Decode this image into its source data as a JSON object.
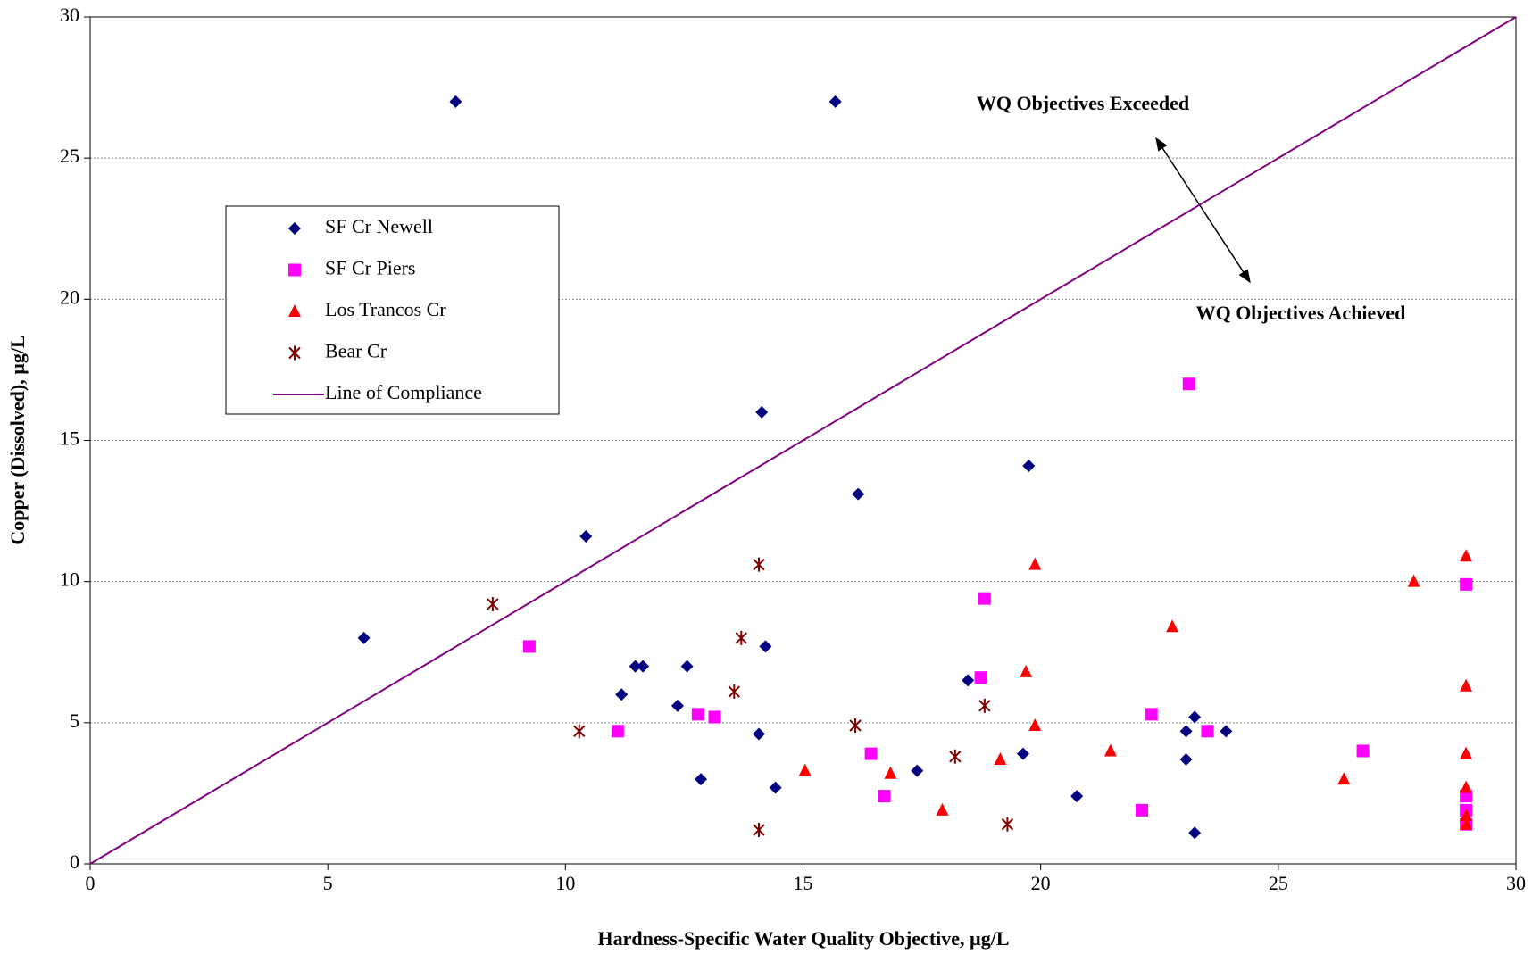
{
  "chart_data": {
    "type": "scatter",
    "x_label": "Hardness-Specific Water Quality Objective, µg/L",
    "y_label": "Copper (Dissolved), µg/L",
    "annotations": [
      "WQ Objectives Exceeded",
      "WQ Objectives Achieved"
    ],
    "xlim": [
      0,
      30
    ],
    "ylim": [
      0,
      30
    ],
    "xticks": [
      0,
      5,
      10,
      15,
      20,
      25,
      30
    ],
    "yticks": [
      0,
      5,
      10,
      15,
      20,
      25,
      30
    ],
    "grid": true,
    "legend": "upper left",
    "series": [
      {
        "name": "SF Cr Newell",
        "color": "#000080",
        "marker": "diamond",
        "x": [
          7.69,
          15.68,
          5.76,
          10.43,
          14.13,
          16.16,
          19.75,
          11.18,
          11.47,
          11.63,
          12.56,
          12.36,
          12.85,
          14.07,
          14.21,
          14.42,
          17.4,
          18.47,
          19.63,
          20.76,
          23.06,
          23.06,
          23.24,
          23.9,
          23.24
        ],
        "values": [
          27.0,
          27.0,
          8.0,
          11.6,
          16.0,
          13.1,
          14.1,
          6.0,
          7.0,
          7.0,
          7.0,
          5.6,
          3.0,
          4.6,
          7.7,
          2.7,
          3.3,
          6.5,
          3.9,
          2.4,
          4.7,
          3.7,
          5.2,
          4.7,
          1.1
        ]
      },
      {
        "name": "SF Cr Piers",
        "color": "#ff00ff",
        "marker": "square",
        "x": [
          9.24,
          11.1,
          12.79,
          13.14,
          16.43,
          16.71,
          18.74,
          18.82,
          22.13,
          22.33,
          23.12,
          23.51,
          26.78,
          28.95,
          28.95,
          28.95,
          28.95
        ],
        "values": [
          7.7,
          4.7,
          5.3,
          5.2,
          3.9,
          2.4,
          6.6,
          9.4,
          1.9,
          5.3,
          17.0,
          4.7,
          4.0,
          9.9,
          2.4,
          1.9,
          1.4
        ]
      },
      {
        "name": "Los Trancos Cr",
        "color": "#ff0000",
        "marker": "triangle",
        "x": [
          15.04,
          16.84,
          17.93,
          19.15,
          19.69,
          19.88,
          19.88,
          21.47,
          22.77,
          26.38,
          27.85,
          28.95,
          28.95,
          28.95,
          28.95,
          28.95,
          28.95
        ],
        "values": [
          3.3,
          3.2,
          1.9,
          3.7,
          6.8,
          10.6,
          4.9,
          4.0,
          8.4,
          3.0,
          10.0,
          10.9,
          6.3,
          3.9,
          2.7,
          1.7,
          1.4
        ]
      },
      {
        "name": "Bear Cr",
        "color": "#800000",
        "marker": "asterisk",
        "x": [
          8.47,
          10.29,
          13.55,
          13.7,
          14.07,
          14.07,
          16.1,
          18.2,
          18.82,
          19.3
        ],
        "values": [
          9.2,
          4.7,
          6.1,
          8.0,
          10.6,
          1.2,
          4.9,
          3.8,
          5.6,
          1.4
        ]
      },
      {
        "name": "Line of Compliance",
        "color": "#800080",
        "marker": "line",
        "x": [
          0,
          30
        ],
        "values": [
          0,
          30
        ]
      }
    ]
  }
}
